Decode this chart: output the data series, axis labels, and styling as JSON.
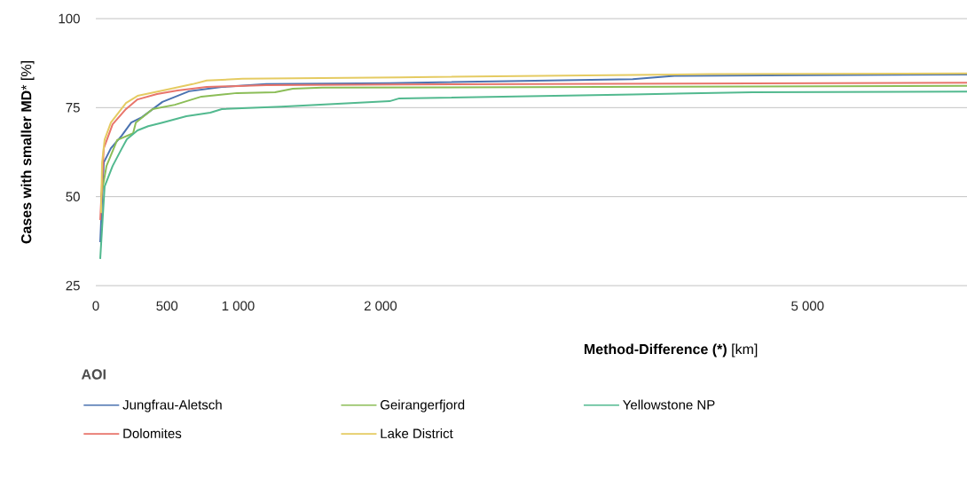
{
  "chart_data": {
    "type": "line",
    "xlabel": "**Method-Difference (*)** [km]",
    "ylabel": "**Cases with smaller MD*** [%]",
    "legend_title": "AOI",
    "xlim": [
      0,
      6120
    ],
    "ylim": [
      25,
      100
    ],
    "xticks": [
      0,
      500,
      {
        "value": 1000,
        "label": "1 000"
      },
      {
        "value": 2000,
        "label": "2 000"
      },
      {
        "value": 5000,
        "label": "5 000"
      }
    ],
    "yticks": [
      25,
      50,
      75,
      100
    ],
    "grid": "y",
    "legend": "bottom",
    "marker": "none",
    "line_style": "solid",
    "series": [
      {
        "name": "Jungfrau-Aletsch",
        "color": "#4a72b0",
        "x": [
          31,
          56,
          106,
          181,
          249,
          324,
          468,
          655,
          885,
          1197,
          2064,
          3772,
          4065,
          6120
        ],
        "values": [
          37.2,
          59.6,
          63.6,
          67.1,
          70.8,
          72.3,
          76.6,
          79.6,
          80.8,
          81.6,
          81.9,
          83.0,
          83.9,
          84.3
        ]
      },
      {
        "name": "Geirangerfjord",
        "color": "#8bbd57",
        "x": [
          37,
          75,
          150,
          262,
          281,
          399,
          555,
          742,
          991,
          1259,
          1384,
          1590,
          6120
        ],
        "values": [
          50.0,
          58.6,
          65.9,
          67.8,
          70.8,
          74.6,
          75.8,
          78.1,
          79.1,
          79.3,
          80.3,
          80.6,
          81.1
        ]
      },
      {
        "name": "Yellowstone NP",
        "color": "#52b98f",
        "x": [
          31,
          62,
          118,
          181,
          218,
          293,
          368,
          468,
          636,
          804,
          885,
          1303,
          2064,
          2132,
          3772,
          4613,
          6120
        ],
        "values": [
          32.5,
          52.9,
          58.6,
          63.4,
          66.1,
          68.6,
          69.8,
          70.8,
          72.6,
          73.6,
          74.6,
          75.3,
          76.8,
          77.6,
          78.7,
          79.3,
          79.5
        ]
      },
      {
        "name": "Dolomites",
        "color": "#e8756b",
        "x": [
          31,
          56,
          118,
          212,
          293,
          430,
          574,
          779,
          1197,
          2132,
          6120
        ],
        "values": [
          43.4,
          63.6,
          70.3,
          74.6,
          77.3,
          78.8,
          79.8,
          80.8,
          81.3,
          81.5,
          82.0
        ]
      },
      {
        "name": "Lake District",
        "color": "#e5cb62",
        "x": [
          37,
          44,
          62,
          106,
          212,
          293,
          493,
          680,
          779,
          1029,
          2132,
          4314,
          6120
        ],
        "values": [
          45.4,
          59.6,
          66.0,
          70.8,
          76.3,
          78.3,
          80.0,
          81.6,
          82.6,
          83.1,
          83.5,
          84.4,
          84.6
        ]
      }
    ]
  }
}
